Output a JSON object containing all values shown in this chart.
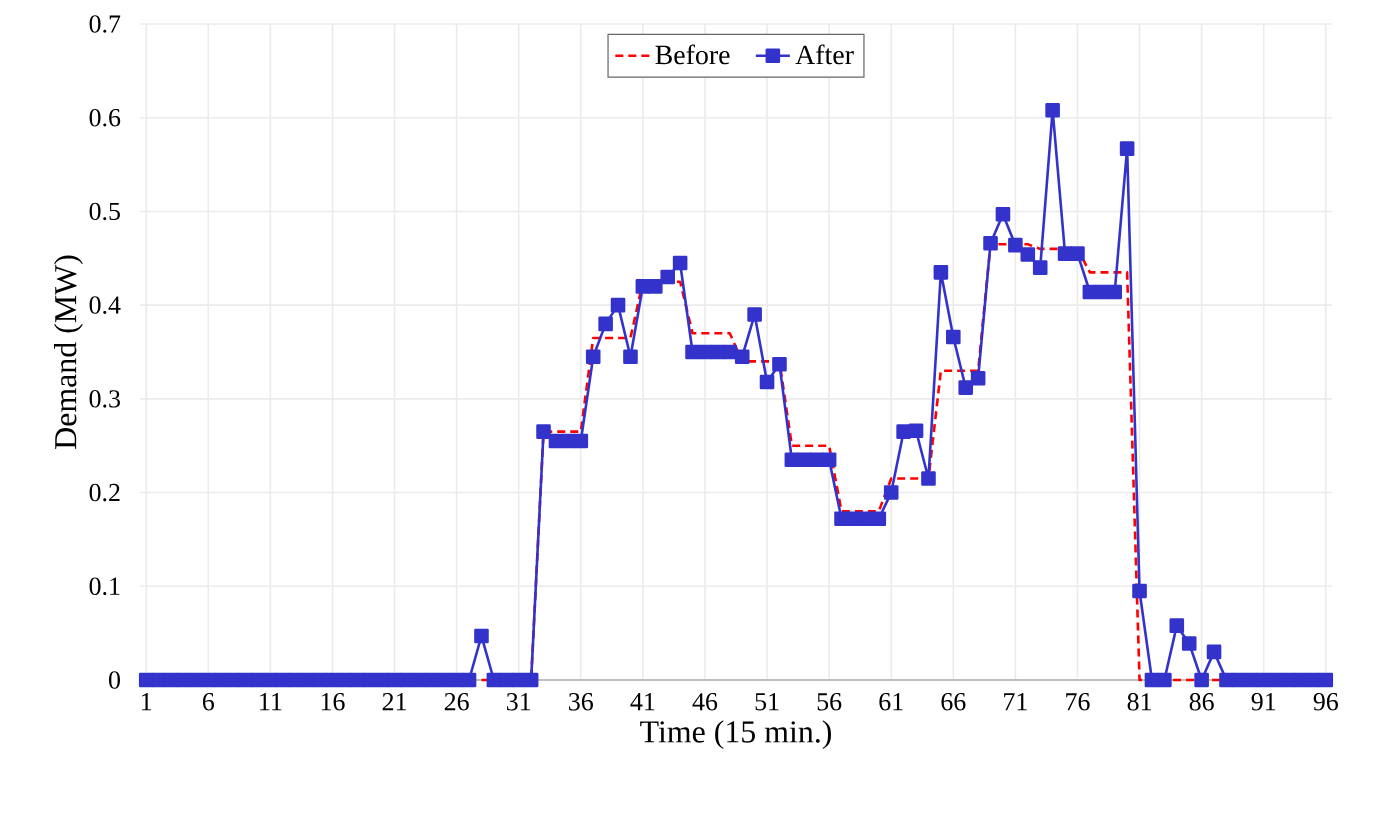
{
  "chart_data": {
    "type": "line",
    "xlabel": "Time (15 min.)",
    "ylabel": "Demand (MW)",
    "x": [
      1,
      2,
      3,
      4,
      5,
      6,
      7,
      8,
      9,
      10,
      11,
      12,
      13,
      14,
      15,
      16,
      17,
      18,
      19,
      20,
      21,
      22,
      23,
      24,
      25,
      26,
      27,
      28,
      29,
      30,
      31,
      32,
      33,
      34,
      35,
      36,
      37,
      38,
      39,
      40,
      41,
      42,
      43,
      44,
      45,
      46,
      47,
      48,
      49,
      50,
      51,
      52,
      53,
      54,
      55,
      56,
      57,
      58,
      59,
      60,
      61,
      62,
      63,
      64,
      65,
      66,
      67,
      68,
      69,
      70,
      71,
      72,
      73,
      74,
      75,
      76,
      77,
      78,
      79,
      80,
      81,
      82,
      83,
      84,
      85,
      86,
      87,
      88,
      89,
      90,
      91,
      92,
      93,
      94,
      95,
      96
    ],
    "xlim": [
      0.5,
      96.5
    ],
    "xticks": [
      1,
      6,
      11,
      16,
      21,
      26,
      31,
      36,
      41,
      46,
      51,
      56,
      61,
      66,
      71,
      76,
      81,
      86,
      91,
      96
    ],
    "ylim": [
      0,
      0.7
    ],
    "yticks": [
      0,
      0.1,
      0.2,
      0.3,
      0.4,
      0.5,
      0.6,
      0.7
    ],
    "grid": true,
    "legend": "top",
    "series": [
      {
        "name": "Before",
        "color": "#ff0000",
        "marker": "none",
        "line_style": "dashed",
        "values": [
          null,
          null,
          null,
          null,
          null,
          null,
          null,
          null,
          null,
          null,
          null,
          null,
          null,
          null,
          null,
          null,
          null,
          null,
          null,
          null,
          null,
          null,
          null,
          null,
          null,
          null,
          null,
          0,
          0,
          0,
          0,
          0,
          0.265,
          0.265,
          0.265,
          0.265,
          0.365,
          0.365,
          0.365,
          0.365,
          0.425,
          0.425,
          0.425,
          0.425,
          0.37,
          0.37,
          0.37,
          0.37,
          0.34,
          0.34,
          0.34,
          0.34,
          0.25,
          0.25,
          0.25,
          0.25,
          0.18,
          0.18,
          0.18,
          0.18,
          0.215,
          0.215,
          0.215,
          0.215,
          0.33,
          0.33,
          0.33,
          0.33,
          0.465,
          0.465,
          0.465,
          0.465,
          0.46,
          0.46,
          0.46,
          0.46,
          0.435,
          0.435,
          0.435,
          0.435,
          0,
          0,
          0,
          0,
          0,
          0,
          0,
          0,
          null,
          null,
          null,
          null,
          null,
          null,
          null,
          null
        ]
      },
      {
        "name": "After",
        "color": "#3333cc",
        "marker": "square",
        "line_style": "solid",
        "values": [
          0,
          0,
          0,
          0,
          0,
          0,
          0,
          0,
          0,
          0,
          0,
          0,
          0,
          0,
          0,
          0,
          0,
          0,
          0,
          0,
          0,
          0,
          0,
          0,
          0,
          0,
          0,
          0.047,
          0,
          0,
          0,
          0,
          0.265,
          0.255,
          0.255,
          0.255,
          0.345,
          0.38,
          0.4,
          0.345,
          0.42,
          0.42,
          0.43,
          0.445,
          0.35,
          0.35,
          0.35,
          0.35,
          0.345,
          0.39,
          0.318,
          0.337,
          0.235,
          0.235,
          0.235,
          0.235,
          0.172,
          0.172,
          0.172,
          0.172,
          0.2,
          0.265,
          0.266,
          0.215,
          0.435,
          0.366,
          0.312,
          0.322,
          0.466,
          0.497,
          0.464,
          0.454,
          0.44,
          0.608,
          0.455,
          0.455,
          0.414,
          0.414,
          0.414,
          0.567,
          0.095,
          0,
          0,
          0.058,
          0.039,
          0,
          0.03,
          0,
          0,
          0,
          0,
          0,
          0,
          0,
          0,
          0
        ]
      }
    ]
  }
}
